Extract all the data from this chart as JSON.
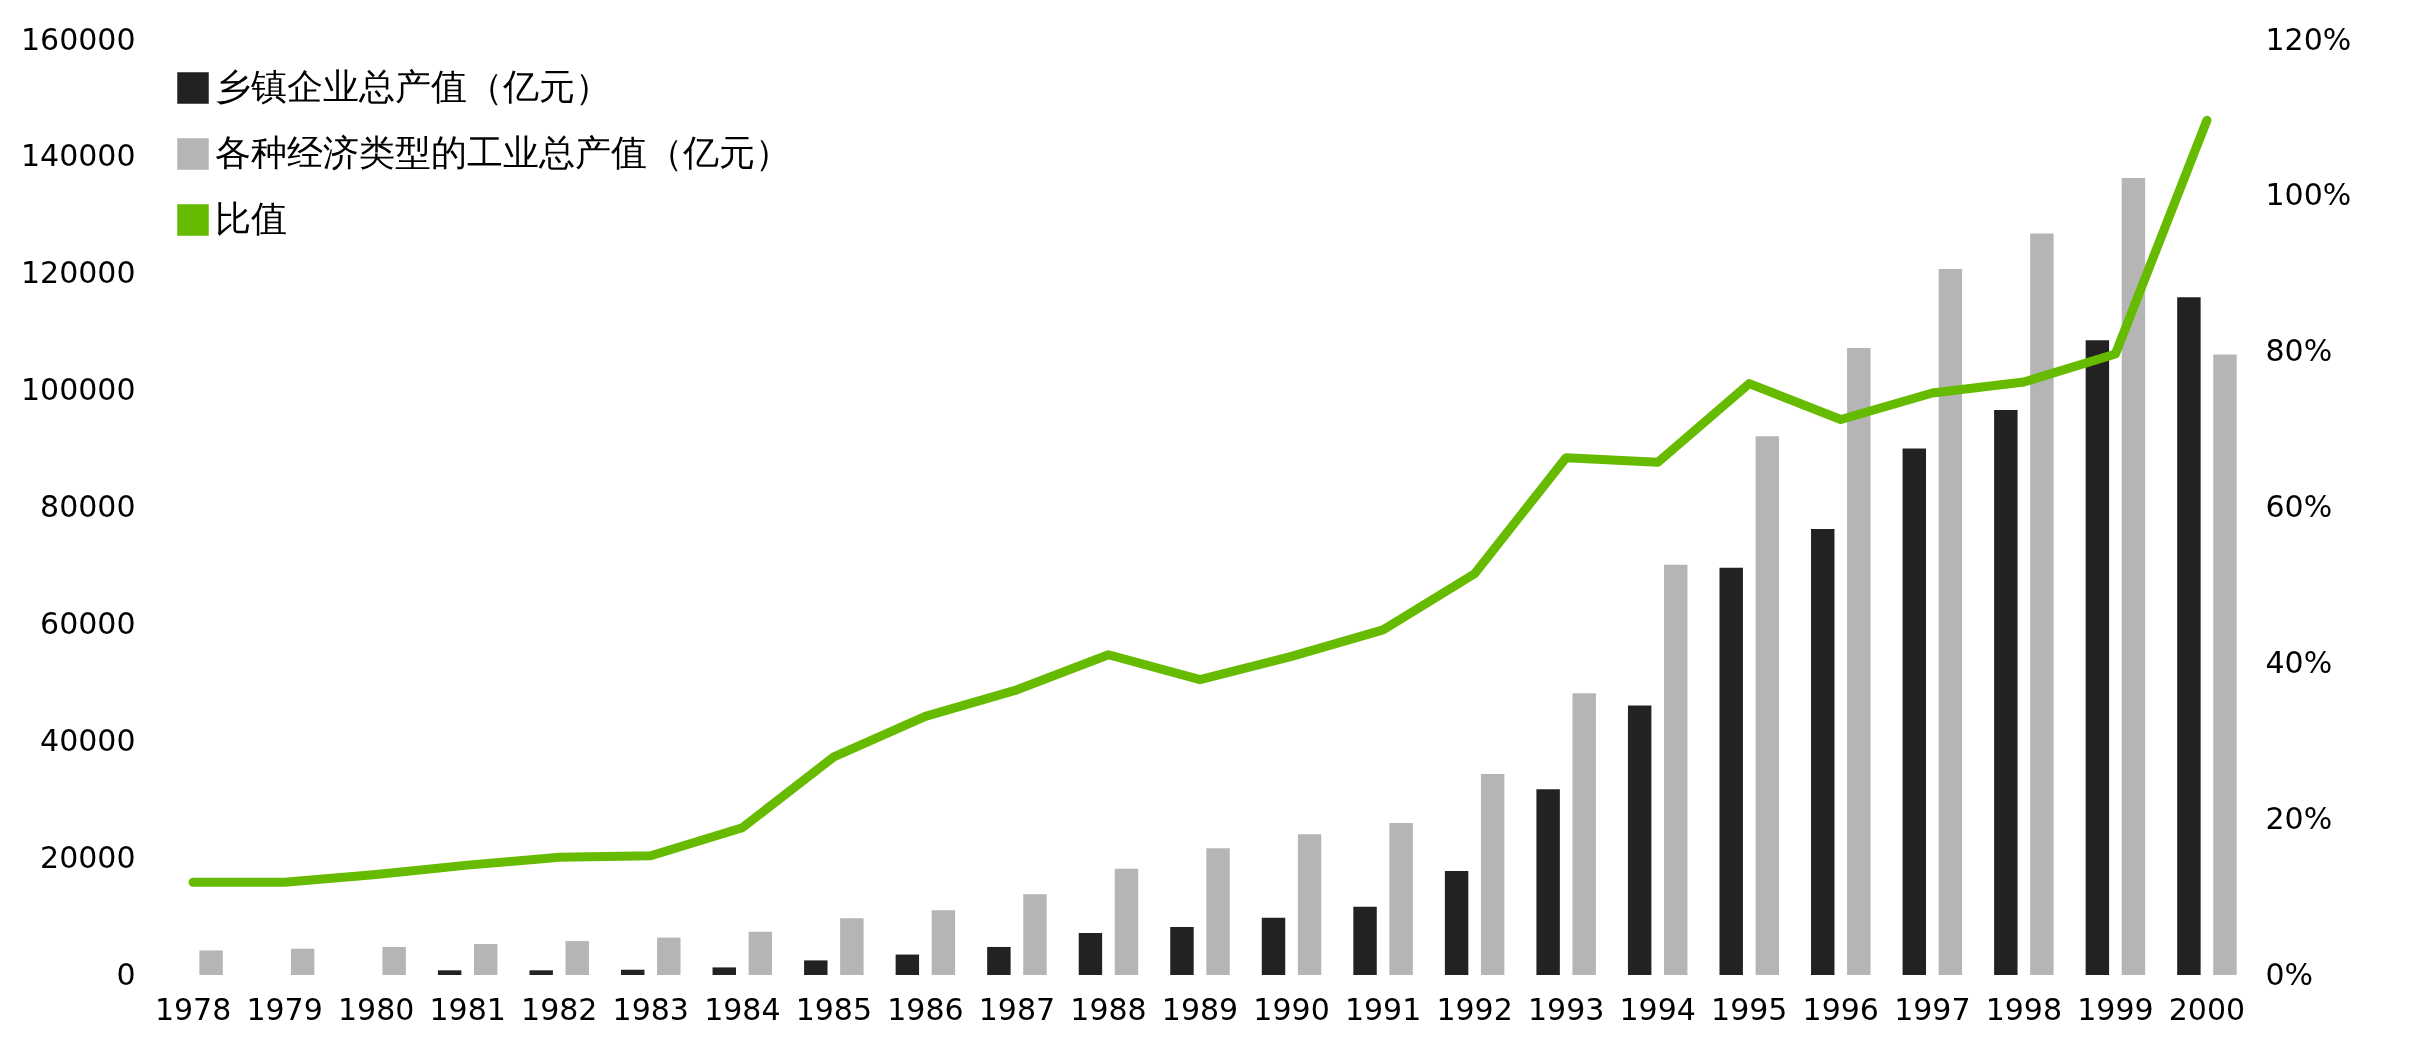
{
  "chart_data": {
    "type": "bar",
    "categories": [
      "1978",
      "1979",
      "1980",
      "1981",
      "1982",
      "1983",
      "1984",
      "1985",
      "1986",
      "1987",
      "1988",
      "1989",
      "1990",
      "1991",
      "1992",
      "1993",
      "1994",
      "1995",
      "1996",
      "1997",
      "1998",
      "1999",
      "2000"
    ],
    "series": [
      {
        "name": "乡镇企业总产值（亿元）",
        "color": "#222222",
        "values": [
          null,
          null,
          null,
          800,
          800,
          900,
          1300,
          2500,
          3500,
          4800,
          7200,
          8200,
          9800,
          11700,
          17800,
          31800,
          46100,
          69700,
          76300,
          90100,
          96700,
          108600,
          116000
        ]
      },
      {
        "name": "各种经济类型的工业总产值（亿元）",
        "color": "#b5b5b5",
        "values": [
          4200,
          4500,
          4800,
          5300,
          5800,
          6400,
          7400,
          9700,
          11100,
          13800,
          18200,
          21700,
          24100,
          26000,
          34400,
          48200,
          70200,
          92200,
          107300,
          120800,
          126900,
          136400,
          106200
        ]
      },
      {
        "name": "比值",
        "type": "line",
        "axis": "y2",
        "color": "#66bb00",
        "values": [
          11.9,
          11.9,
          12.9,
          14.1,
          15.1,
          15.3,
          18.9,
          28.0,
          33.2,
          36.6,
          41.1,
          37.9,
          40.9,
          44.3,
          51.5,
          66.4,
          65.8,
          75.9,
          71.3,
          74.7,
          76.1,
          79.7,
          109.7
        ]
      }
    ],
    "ylim": [
      0,
      160000
    ],
    "yticks": [
      0,
      20000,
      40000,
      60000,
      80000,
      100000,
      120000,
      140000,
      160000
    ],
    "y2lim": [
      0,
      120
    ],
    "y2ticks": [
      {
        "value": 0,
        "label": "0%"
      },
      {
        "value": 20,
        "label": "20%"
      },
      {
        "value": 40,
        "label": "40%"
      },
      {
        "value": 60,
        "label": "60%"
      },
      {
        "value": 80,
        "label": "80%"
      },
      {
        "value": 100,
        "label": "100%"
      },
      {
        "value": 120,
        "label": "120%"
      }
    ],
    "grid": false,
    "legend": "top left"
  }
}
